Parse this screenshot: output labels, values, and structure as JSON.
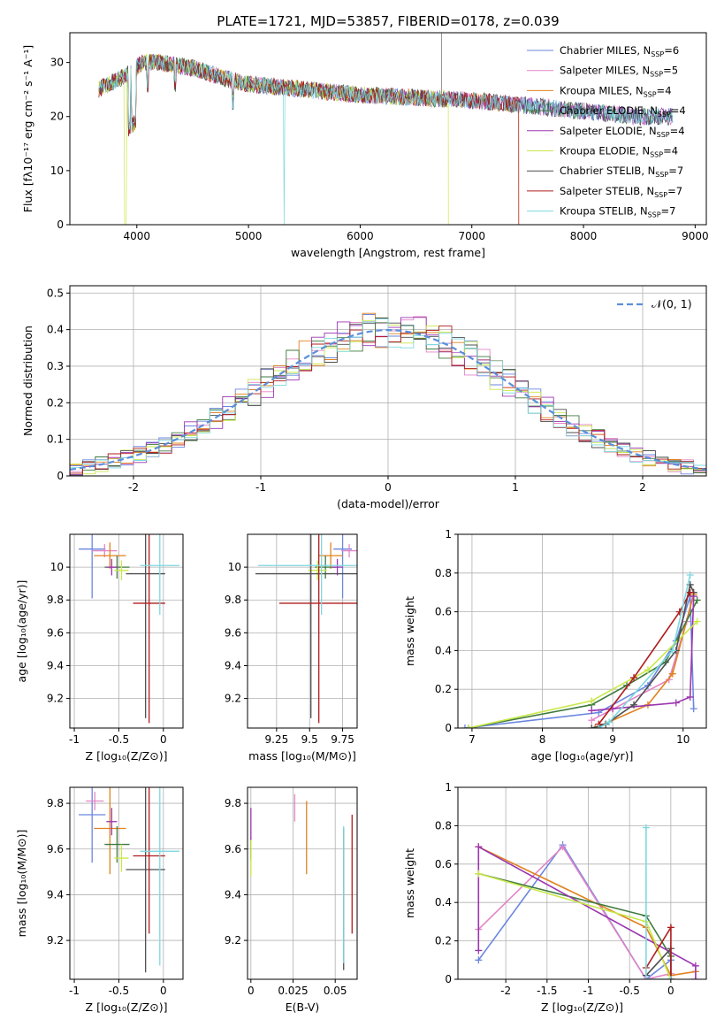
{
  "figure_title": "PLATE=1721, MJD=53857, FIBERID=0178, z=0.039",
  "models": [
    {
      "label": "Chabrier MILES",
      "nssp": "6",
      "color": "#6b86e0"
    },
    {
      "label": "Salpeter MILES",
      "nssp": "5",
      "color": "#e384c7"
    },
    {
      "label": "Kroupa MILES",
      "nssp": "4",
      "color": "#e0821e"
    },
    {
      "label": "Chabrier ELODIE",
      "nssp": "4",
      "color": "#3f7a3f"
    },
    {
      "label": "Salpeter ELODIE",
      "nssp": "4",
      "color": "#9b36b0"
    },
    {
      "label": "Kroupa ELODIE",
      "nssp": "4",
      "color": "#c9e84a"
    },
    {
      "label": "Chabrier STELIB",
      "nssp": "7",
      "color": "#4f4f4f"
    },
    {
      "label": "Salpeter STELIB",
      "nssp": "7",
      "color": "#b01c1c"
    },
    {
      "label": "Kroupa STELIB",
      "nssp": "7",
      "color": "#7ed8e0"
    }
  ],
  "nssp_prefix": "N",
  "nssp_sub": "SSP",
  "chart_data": [
    {
      "id": "spectrum",
      "type": "line",
      "xlabel": "wavelength [Angstrom, rest frame]",
      "ylabel": "Flux [fλ10⁻¹⁷ erg cm⁻² s⁻¹ A⁻¹]",
      "xlim": [
        3400,
        9100
      ],
      "ylim": [
        0,
        35.5
      ],
      "xticks": [
        4000,
        5000,
        6000,
        7000,
        8000,
        9000
      ],
      "yticks": [
        0,
        10,
        20,
        30
      ],
      "grid": false,
      "legend": "top-right",
      "continuum": {
        "x": [
          3650,
          3900,
          4050,
          4200,
          4500,
          4800,
          5000,
          5500,
          6000,
          6500,
          7000,
          7500,
          8000,
          8500,
          8800
        ],
        "y": [
          25,
          27.5,
          30,
          30,
          29,
          27,
          26,
          25,
          24,
          23.5,
          23,
          22,
          21,
          20,
          20
        ]
      }
    },
    {
      "id": "residuals",
      "type": "step",
      "xlabel": "(data-model)/error",
      "ylabel": "Normed distribution",
      "xlim": [
        -2.5,
        2.5
      ],
      "ylim": [
        0,
        0.52
      ],
      "xticks": [
        -2,
        -1,
        0,
        1,
        2
      ],
      "yticks": [
        0,
        0.1,
        0.2,
        0.3,
        0.4,
        0.5
      ],
      "grid": true,
      "legend": "top-right",
      "reference_label": "𝒩(0, 1)",
      "bin_width": 0.1
    },
    {
      "id": "age_vs_Z",
      "type": "errorbar",
      "xlabel": "Z [log₁₀(Z/Z⊙)]",
      "ylabel": "age  [log₁₀(age/yr)]",
      "xlim": [
        -1.05,
        0.22
      ],
      "ylim": [
        9.02,
        10.2
      ],
      "xticks": [
        -1.0,
        -0.5,
        0.0
      ],
      "yticks": [
        9.2,
        9.4,
        9.6,
        9.8,
        10.0
      ],
      "grid": true,
      "points": [
        {
          "x": -0.8,
          "xerr": 0.15,
          "y": 10.11,
          "yerr": 0.3
        },
        {
          "x": -0.66,
          "xerr": 0.14,
          "y": 10.1,
          "yerr": 0.04
        },
        {
          "x": -0.6,
          "xerr": 0.18,
          "y": 10.07,
          "yerr": 0.08
        },
        {
          "x": -0.52,
          "xerr": 0.14,
          "y": 10.0,
          "yerr": 0.07
        },
        {
          "x": -0.58,
          "xerr": 0.06,
          "y": 10.0,
          "yerr": 0.05
        },
        {
          "x": -0.47,
          "xerr": 0.08,
          "y": 9.98,
          "yerr": 0.06
        },
        {
          "x": -0.2,
          "xerr": 0.22,
          "y": 9.96,
          "yerr": 0.88
        },
        {
          "x": -0.16,
          "xerr": 0.18,
          "y": 9.78,
          "yerr": 0.73
        },
        {
          "x": -0.04,
          "xerr": 0.22,
          "y": 10.01,
          "yerr": 0.3
        }
      ]
    },
    {
      "id": "age_vs_mass",
      "type": "errorbar",
      "xlabel": "mass [log₁₀(M/M⊙)]",
      "ylabel": "",
      "xlim": [
        9.03,
        9.86
      ],
      "ylim": [
        9.02,
        10.2
      ],
      "xticks": [
        9.25,
        9.5,
        9.75
      ],
      "yticks": [
        9.2,
        9.4,
        9.6,
        9.8,
        10.0
      ],
      "grid": true,
      "points": [
        {
          "x": 9.75,
          "xerr": 0.07,
          "y": 10.11,
          "yerr": 0.3
        },
        {
          "x": 9.8,
          "xerr": 0.06,
          "y": 10.1,
          "yerr": 0.04
        },
        {
          "x": 9.66,
          "xerr": 0.09,
          "y": 10.07,
          "yerr": 0.08
        },
        {
          "x": 9.62,
          "xerr": 0.08,
          "y": 10.0,
          "yerr": 0.07
        },
        {
          "x": 9.71,
          "xerr": 0.04,
          "y": 10.0,
          "yerr": 0.05
        },
        {
          "x": 9.56,
          "xerr": 0.07,
          "y": 9.98,
          "yerr": 0.06
        },
        {
          "x": 9.51,
          "xerr": 0.42,
          "y": 9.96,
          "yerr": 0.88
        },
        {
          "x": 9.57,
          "xerr": 0.3,
          "y": 9.78,
          "yerr": 0.73
        },
        {
          "x": 9.59,
          "xerr": 0.48,
          "y": 10.01,
          "yerr": 0.3
        }
      ]
    },
    {
      "id": "weight_vs_age",
      "type": "line",
      "xlabel": "age  [log₁₀(age/yr)]",
      "ylabel": "mass weight",
      "xlim": [
        6.8,
        10.33
      ],
      "ylim": [
        0,
        1.0
      ],
      "xticks": [
        7,
        8,
        9,
        10
      ],
      "yticks": [
        0,
        0.2,
        0.4,
        0.6,
        0.8,
        1.0
      ],
      "grid": true,
      "series": [
        {
          "x": [
            6.9,
            8.8,
            9.5,
            9.9,
            10.1,
            10.15
          ],
          "y": [
            0.0,
            0.08,
            0.22,
            0.45,
            0.68,
            0.1
          ]
        },
        {
          "x": [
            8.7,
            9.8,
            10.05,
            10.15
          ],
          "y": [
            0.04,
            0.25,
            0.55,
            0.7
          ]
        },
        {
          "x": [
            8.75,
            9.5,
            9.85,
            10.15
          ],
          "y": [
            0.0,
            0.12,
            0.28,
            0.69
          ]
        },
        {
          "x": [
            6.95,
            8.7,
            9.2,
            9.75,
            10.2
          ],
          "y": [
            0.0,
            0.12,
            0.22,
            0.34,
            0.66
          ]
        },
        {
          "x": [
            8.7,
            9.0,
            9.9,
            10.1,
            10.15
          ],
          "y": [
            0.09,
            0.1,
            0.13,
            0.16,
            0.68
          ]
        },
        {
          "x": [
            6.95,
            8.7,
            9.5,
            10.2
          ],
          "y": [
            0.0,
            0.14,
            0.3,
            0.55
          ]
        },
        {
          "x": [
            8.7,
            8.9,
            9.3,
            9.9,
            10.1,
            10.15
          ],
          "y": [
            0.0,
            0.02,
            0.12,
            0.4,
            0.74,
            0.7
          ]
        },
        {
          "x": [
            8.8,
            9.3,
            9.95,
            10.1
          ],
          "y": [
            0.02,
            0.26,
            0.6,
            0.7
          ]
        },
        {
          "x": [
            8.8,
            8.95,
            9.85,
            10.1
          ],
          "y": [
            0.0,
            0.03,
            0.4,
            0.79
          ]
        }
      ]
    },
    {
      "id": "mass_vs_Z",
      "type": "errorbar",
      "xlabel": "Z [log₁₀(Z/Z⊙)]",
      "ylabel": "mass [log₁₀(M/M⊙)]",
      "xlim": [
        -1.05,
        0.22
      ],
      "ylim": [
        9.03,
        9.87
      ],
      "xticks": [
        -1.0,
        -0.5,
        0.0
      ],
      "yticks": [
        9.2,
        9.4,
        9.6,
        9.8
      ],
      "grid": true,
      "points": [
        {
          "x": -0.8,
          "xerr": 0.15,
          "y": 9.75,
          "yerr": 0.21
        },
        {
          "x": -0.77,
          "xerr": 0.1,
          "y": 9.81,
          "yerr": 0.04
        },
        {
          "x": -0.6,
          "xerr": 0.18,
          "y": 9.69,
          "yerr": 0.2
        },
        {
          "x": -0.52,
          "xerr": 0.14,
          "y": 9.62,
          "yerr": 0.08
        },
        {
          "x": -0.58,
          "xerr": 0.06,
          "y": 9.72,
          "yerr": 0.06
        },
        {
          "x": -0.47,
          "xerr": 0.08,
          "y": 9.56,
          "yerr": 0.06
        },
        {
          "x": -0.2,
          "xerr": 0.22,
          "y": 9.51,
          "yerr": 0.45
        },
        {
          "x": -0.16,
          "xerr": 0.18,
          "y": 9.57,
          "yerr": 0.34
        },
        {
          "x": -0.04,
          "xerr": 0.22,
          "y": 9.59,
          "yerr": 0.5
        }
      ]
    },
    {
      "id": "mass_vs_EBV",
      "type": "errorbar",
      "xlabel": "E(B-V)",
      "ylabel": "",
      "xlim": [
        -0.002,
        0.063
      ],
      "ylim": [
        9.03,
        9.87
      ],
      "xticks": [
        0.0,
        0.025,
        0.05
      ],
      "yticks": [
        9.2,
        9.4,
        9.6,
        9.8
      ],
      "grid": true,
      "points": [
        {
          "x": 0.0,
          "xerr": 0,
          "y": 9.6,
          "yerr": 0.04
        },
        {
          "x": 0.026,
          "xerr": 0,
          "y": 9.78,
          "yerr": 0.06
        },
        {
          "x": 0.033,
          "xerr": 0,
          "y": 9.65,
          "yerr": 0.16
        },
        {
          "x": 0.0,
          "xerr": 0,
          "y": 9.6,
          "yerr": 0.05
        },
        {
          "x": 0.0,
          "xerr": 0,
          "y": 9.71,
          "yerr": 0.07
        },
        {
          "x": 0.0,
          "xerr": 0,
          "y": 9.56,
          "yerr": 0.08
        },
        {
          "x": 0.055,
          "xerr": 0,
          "y": 9.38,
          "yerr": 0.31
        },
        {
          "x": 0.06,
          "xerr": 0,
          "y": 9.49,
          "yerr": 0.26
        },
        {
          "x": 0.055,
          "xerr": 0,
          "y": 9.4,
          "yerr": 0.3
        }
      ]
    },
    {
      "id": "weight_vs_Z",
      "type": "line",
      "xlabel": "Z [log₁₀(Z/Z⊙)]",
      "ylabel": "mass weight",
      "xlim": [
        -2.58,
        0.43
      ],
      "ylim": [
        0,
        1.0
      ],
      "xticks": [
        -2.0,
        -1.5,
        -1.0,
        -0.5,
        0.0
      ],
      "yticks": [
        0,
        0.2,
        0.4,
        0.6,
        0.8,
        1.0
      ],
      "grid": true,
      "series": [
        {
          "x": [
            -2.33,
            -1.31,
            -0.3,
            0.0,
            0.0
          ],
          "y": [
            0.1,
            0.7,
            0.0,
            0.1,
            0.0
          ]
        },
        {
          "x": [
            -2.33,
            -1.31,
            -0.3,
            0.0
          ],
          "y": [
            0.26,
            0.69,
            0.0,
            0.03
          ]
        },
        {
          "x": [
            -2.33,
            -0.3,
            0.0,
            0.3
          ],
          "y": [
            0.69,
            0.27,
            0.02,
            0.04
          ]
        },
        {
          "x": [
            -2.33,
            -0.3,
            0.0
          ],
          "y": [
            0.55,
            0.33,
            0.12
          ]
        },
        {
          "x": [
            -2.33,
            -2.33,
            0.3,
            0.3
          ],
          "y": [
            0.15,
            0.69,
            0.07,
            0.0
          ]
        },
        {
          "x": [
            -2.33,
            -0.3,
            0.0
          ],
          "y": [
            0.55,
            0.3,
            0.0
          ]
        },
        {
          "x": [
            -0.3,
            0.0,
            0.0
          ],
          "y": [
            0.02,
            0.16,
            0.0
          ]
        },
        {
          "x": [
            -0.3,
            0.0,
            0.0
          ],
          "y": [
            0.06,
            0.27,
            0.0
          ]
        },
        {
          "x": [
            -0.3,
            -0.3,
            0.0
          ],
          "y": [
            0.79,
            0.0,
            0.0
          ]
        }
      ]
    }
  ]
}
